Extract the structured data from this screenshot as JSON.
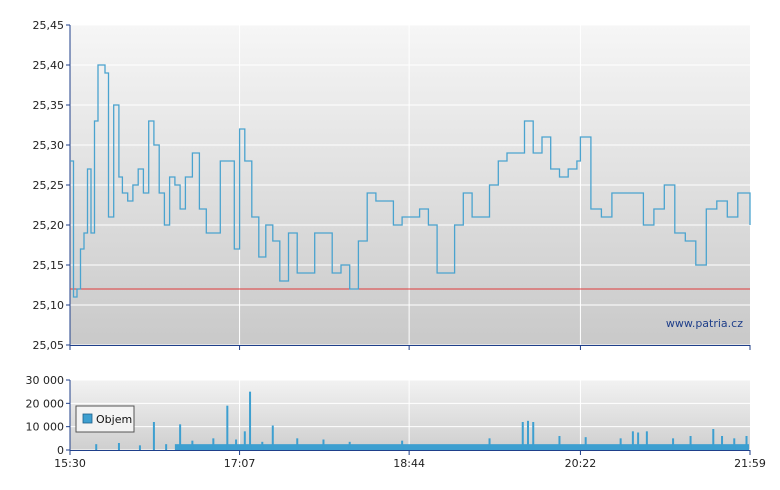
{
  "chart_data": [
    {
      "type": "line",
      "ylim": [
        25.05,
        25.45
      ],
      "y_ticks": [
        "25,45",
        "25,40",
        "25,35",
        "25,30",
        "25,25",
        "25,20",
        "25,15",
        "25,10",
        "25,05"
      ],
      "y_tick_values": [
        25.45,
        25.4,
        25.35,
        25.3,
        25.25,
        25.2,
        25.15,
        25.1,
        25.05
      ],
      "reference_line": {
        "value": 25.12,
        "color": "#e03b3b"
      },
      "watermark": "www.patria.cz",
      "line_color": "#4aa3cf",
      "grid": true,
      "series": [
        {
          "x": [
            "15:30",
            "15:32",
            "15:34",
            "15:36",
            "15:38",
            "15:40",
            "15:42",
            "15:44",
            "15:46",
            "15:48",
            "15:50",
            "15:52",
            "15:55",
            "15:58",
            "16:00",
            "16:03",
            "16:06",
            "16:09",
            "16:12",
            "16:15",
            "16:18",
            "16:21",
            "16:24",
            "16:27",
            "16:30",
            "16:33",
            "16:36",
            "16:40",
            "16:44",
            "16:48",
            "16:52",
            "16:56",
            "17:00",
            "17:04",
            "17:07",
            "17:10",
            "17:14",
            "17:18",
            "17:22",
            "17:26",
            "17:30",
            "17:35",
            "17:40",
            "17:45",
            "17:50",
            "17:55",
            "18:00",
            "18:05",
            "18:10",
            "18:15",
            "18:20",
            "18:25",
            "18:30",
            "18:35",
            "18:40",
            "18:44",
            "18:50",
            "18:55",
            "19:00",
            "19:05",
            "19:10",
            "19:15",
            "19:20",
            "19:25",
            "19:30",
            "19:35",
            "19:40",
            "19:45",
            "19:50",
            "19:55",
            "20:00",
            "20:05",
            "20:10",
            "20:15",
            "20:20",
            "20:22",
            "20:28",
            "20:34",
            "20:40",
            "20:46",
            "20:52",
            "20:58",
            "21:04",
            "21:10",
            "21:16",
            "21:22",
            "21:28",
            "21:34",
            "21:40",
            "21:46",
            "21:52",
            "21:59"
          ],
          "values": [
            25.28,
            25.11,
            25.12,
            25.17,
            25.19,
            25.27,
            25.19,
            25.33,
            25.4,
            25.4,
            25.39,
            25.21,
            25.35,
            25.26,
            25.24,
            25.23,
            25.25,
            25.27,
            25.24,
            25.33,
            25.3,
            25.24,
            25.2,
            25.26,
            25.25,
            25.22,
            25.26,
            25.29,
            25.22,
            25.19,
            25.19,
            25.28,
            25.28,
            25.17,
            25.32,
            25.28,
            25.21,
            25.16,
            25.2,
            25.18,
            25.13,
            25.19,
            25.14,
            25.14,
            25.19,
            25.19,
            25.14,
            25.15,
            25.12,
            25.18,
            25.24,
            25.23,
            25.23,
            25.2,
            25.21,
            25.21,
            25.22,
            25.2,
            25.14,
            25.14,
            25.2,
            25.24,
            25.21,
            25.21,
            25.25,
            25.28,
            25.29,
            25.29,
            25.33,
            25.29,
            25.31,
            25.27,
            25.26,
            25.27,
            25.28,
            25.31,
            25.22,
            25.21,
            25.24,
            25.24,
            25.24,
            25.2,
            25.22,
            25.25,
            25.19,
            25.18,
            25.15,
            25.22,
            25.23,
            25.21,
            25.24,
            25.2
          ]
        }
      ]
    },
    {
      "type": "bar",
      "ylim": [
        0,
        30000
      ],
      "y_ticks": [
        "30 000",
        "20 000",
        "10 000",
        "0"
      ],
      "y_tick_values": [
        30000,
        20000,
        10000,
        0
      ],
      "x_ticks": [
        "15:30",
        "17:07",
        "18:44",
        "20:22",
        "21:59"
      ],
      "legend": "Objem",
      "legend_position": "left",
      "bar_color": "#3d9fd0",
      "grid": true,
      "volume_spikes": [
        {
          "time": "15:45",
          "value": 2500
        },
        {
          "time": "15:58",
          "value": 3000
        },
        {
          "time": "16:10",
          "value": 2000
        },
        {
          "time": "16:18",
          "value": 12000
        },
        {
          "time": "16:25",
          "value": 2500
        },
        {
          "time": "16:33",
          "value": 11000
        },
        {
          "time": "16:40",
          "value": 4000
        },
        {
          "time": "16:52",
          "value": 5000
        },
        {
          "time": "17:00",
          "value": 19000
        },
        {
          "time": "17:05",
          "value": 4500
        },
        {
          "time": "17:10",
          "value": 8000
        },
        {
          "time": "17:13",
          "value": 25000
        },
        {
          "time": "17:20",
          "value": 3500
        },
        {
          "time": "17:26",
          "value": 10500
        },
        {
          "time": "17:40",
          "value": 5000
        },
        {
          "time": "17:55",
          "value": 4500
        },
        {
          "time": "18:10",
          "value": 3500
        },
        {
          "time": "18:40",
          "value": 4000
        },
        {
          "time": "19:30",
          "value": 5000
        },
        {
          "time": "19:49",
          "value": 12000
        },
        {
          "time": "19:52",
          "value": 12500
        },
        {
          "time": "19:55",
          "value": 12000
        },
        {
          "time": "20:10",
          "value": 6000
        },
        {
          "time": "20:25",
          "value": 5500
        },
        {
          "time": "20:45",
          "value": 5000
        },
        {
          "time": "20:52",
          "value": 8000
        },
        {
          "time": "20:55",
          "value": 7500
        },
        {
          "time": "21:00",
          "value": 8000
        },
        {
          "time": "21:15",
          "value": 5000
        },
        {
          "time": "21:25",
          "value": 6000
        },
        {
          "time": "21:38",
          "value": 9000
        },
        {
          "time": "21:43",
          "value": 6000
        },
        {
          "time": "21:50",
          "value": 5000
        },
        {
          "time": "21:57",
          "value": 6000
        }
      ],
      "baseline_volume": 2500
    }
  ]
}
